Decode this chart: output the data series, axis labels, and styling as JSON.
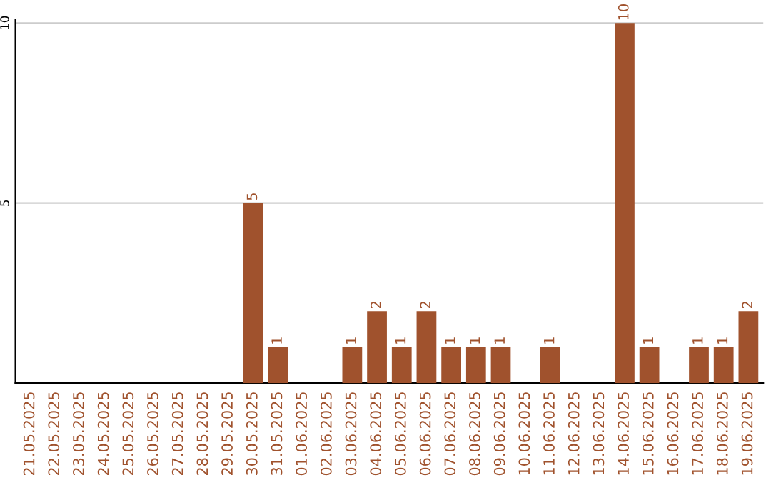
{
  "chart_data": {
    "type": "bar",
    "categories": [
      "21.05.2025",
      "22.05.2025",
      "23.05.2025",
      "24.05.2025",
      "25.05.2025",
      "26.05.2025",
      "27.05.2025",
      "28.05.2025",
      "29.05.2025",
      "30.05.2025",
      "31.05.2025",
      "01.06.2025",
      "02.06.2025",
      "03.06.2025",
      "04.06.2025",
      "05.06.2025",
      "06.06.2025",
      "07.06.2025",
      "08.06.2025",
      "09.06.2025",
      "10.06.2025",
      "11.06.2025",
      "12.06.2025",
      "13.06.2025",
      "14.06.2025",
      "15.06.2025",
      "16.06.2025",
      "17.06.2025",
      "18.06.2025",
      "19.06.2025"
    ],
    "values": [
      0,
      0,
      0,
      0,
      0,
      0,
      0,
      0,
      0,
      5,
      1,
      0,
      0,
      1,
      2,
      1,
      2,
      1,
      1,
      1,
      0,
      1,
      0,
      0,
      10,
      1,
      0,
      1,
      1,
      2
    ],
    "value_labels": [
      null,
      null,
      null,
      null,
      null,
      null,
      null,
      null,
      null,
      "5",
      "1",
      null,
      null,
      "1",
      "2",
      "1",
      "2",
      "1",
      "1",
      "1",
      null,
      "1",
      null,
      null,
      "10",
      "1",
      null,
      "1",
      "1",
      "2"
    ],
    "color": "#a0522d",
    "ylim": [
      0,
      10.1
    ],
    "yticks": [
      5,
      10
    ],
    "grid": "y"
  }
}
